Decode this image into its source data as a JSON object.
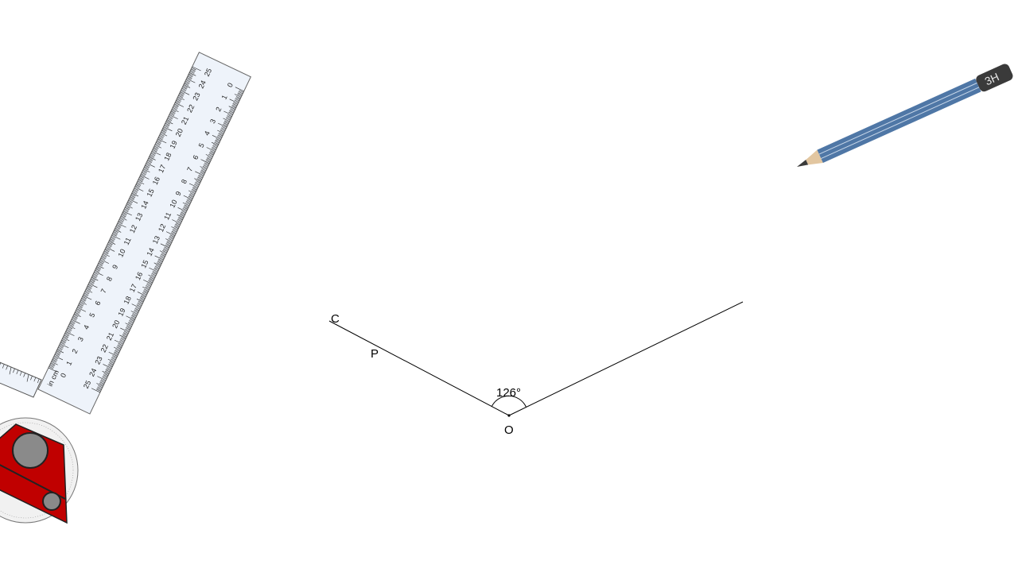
{
  "diagram": {
    "angle_label": "126°",
    "vertex_label": "O",
    "point_labels": {
      "c": "C",
      "p": "P"
    }
  },
  "pencil": {
    "grade": "3H",
    "color": "#4f77a6"
  },
  "ruler_tool": {
    "unit_label": "in cm",
    "scale_max": 25,
    "accent_color": "#c00000"
  }
}
